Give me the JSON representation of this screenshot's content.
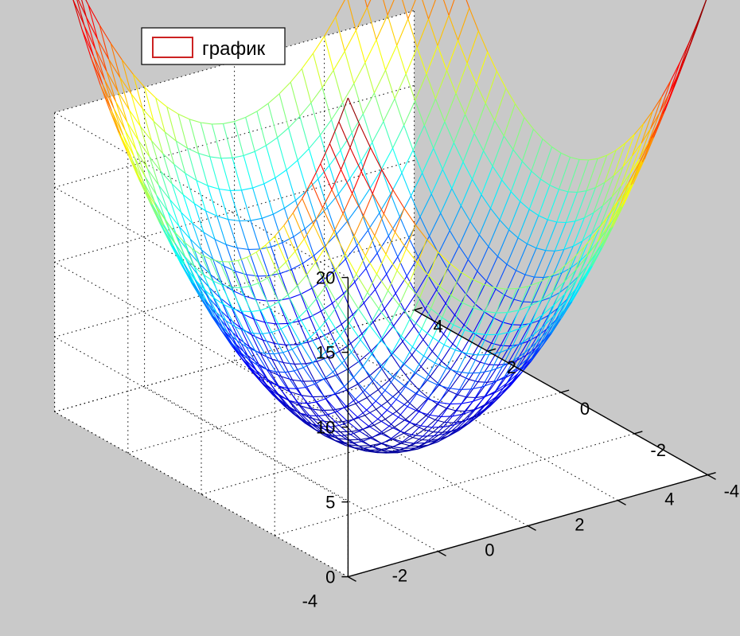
{
  "chart_data": {
    "type": "surface-mesh",
    "function": "z = x^2 + y^2",
    "x_range": [
      -4,
      4
    ],
    "y_range": [
      -4,
      4
    ],
    "z_range": [
      0,
      20
    ],
    "mesh_step": 0.25,
    "grid": true,
    "colormap": "jet",
    "colormap_stops": [
      "#00008f",
      "#0000ff",
      "#00ffff",
      "#ffff00",
      "#ff0000",
      "#800000"
    ],
    "legend": {
      "label": "график",
      "placement": "top-left",
      "swatch_color": "#cc2222"
    },
    "x_ticks": [
      "-4",
      "-2",
      "0",
      "2",
      "4"
    ],
    "y_ticks": [
      "-4",
      "-2",
      "0",
      "2",
      "4"
    ],
    "z_ticks": [
      "0",
      "5",
      "10",
      "15",
      "20"
    ],
    "surface_samples": [
      {
        "x": 0,
        "y": 0,
        "z": 0
      },
      {
        "x": 4,
        "y": 0,
        "z": 16
      },
      {
        "x": 0,
        "y": 4,
        "z": 16
      },
      {
        "x": 2.8,
        "y": 2.8,
        "z": 15.7
      },
      {
        "x": -2.8,
        "y": -2.8,
        "z": 15.7
      }
    ]
  }
}
